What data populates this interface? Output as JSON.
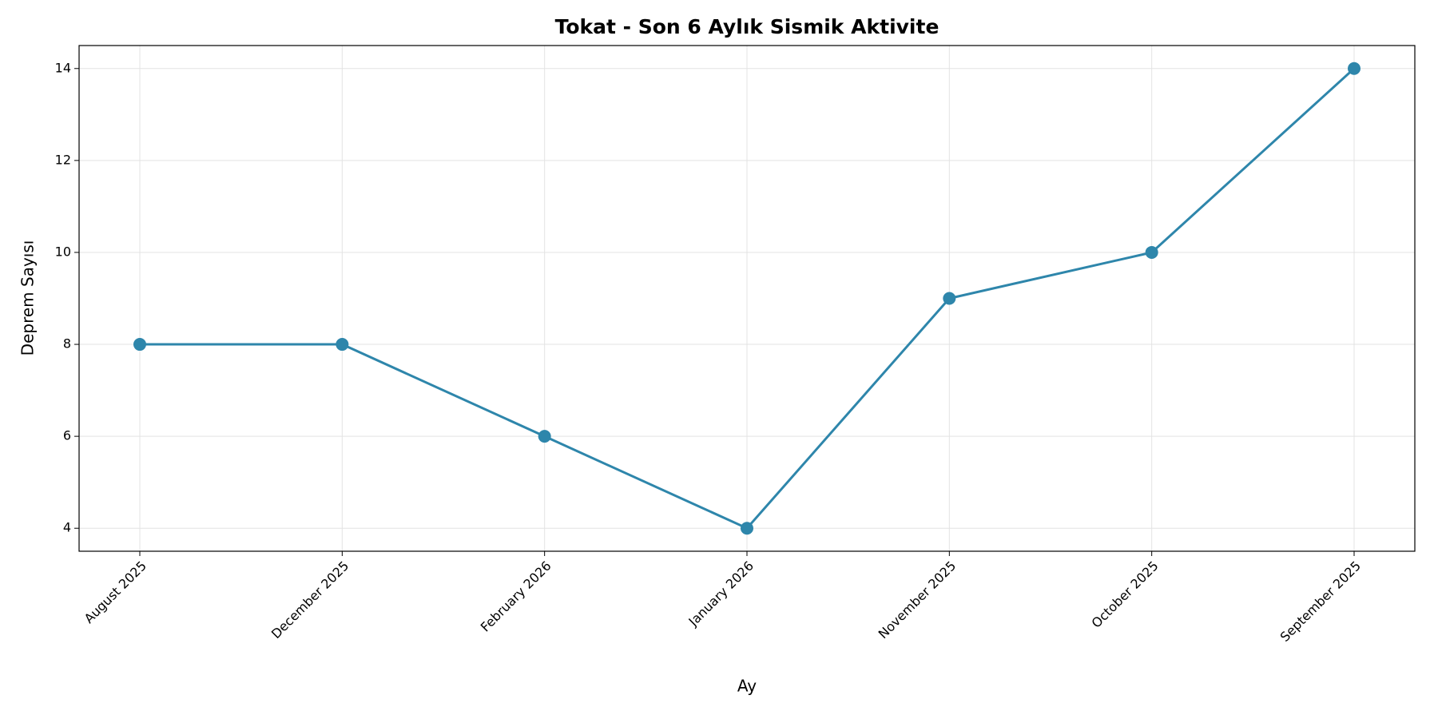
{
  "chart_data": {
    "type": "line",
    "title": "Tokat - Son 6 Aylık Sismik Aktivite",
    "x_label": "Ay",
    "y_label": "Deprem Sayısı",
    "categories": [
      "August 2025",
      "December 2025",
      "February 2026",
      "January 2026",
      "November 2025",
      "October 2025",
      "September 2025"
    ],
    "series": [
      {
        "name": "Deprem Sayısı",
        "color": "#2e86ab",
        "values": [
          8,
          8,
          6,
          4,
          9,
          10,
          14
        ]
      }
    ],
    "ylim": [
      3.5,
      14.5
    ],
    "yticks": [
      4,
      6,
      8,
      10,
      12,
      14
    ],
    "grid": true
  }
}
